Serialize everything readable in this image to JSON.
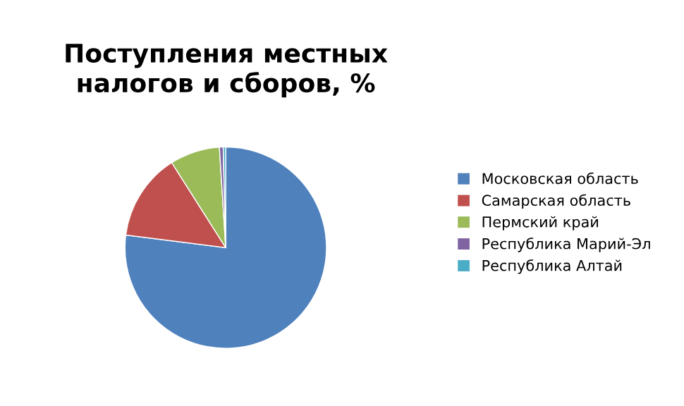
{
  "chart_data": {
    "type": "pie",
    "title": "Поступления местных налогов и сборов, %",
    "categories": [
      "Московская область",
      "Самарская область",
      "Пермский край",
      "Республика Марий-Эл",
      "Республика Алтай"
    ],
    "values": [
      77,
      14,
      8,
      0.6,
      0.4
    ],
    "colors": [
      "#4f81bd",
      "#c0504d",
      "#9bbb59",
      "#8064a2",
      "#4bacc6"
    ],
    "legend": "right"
  }
}
